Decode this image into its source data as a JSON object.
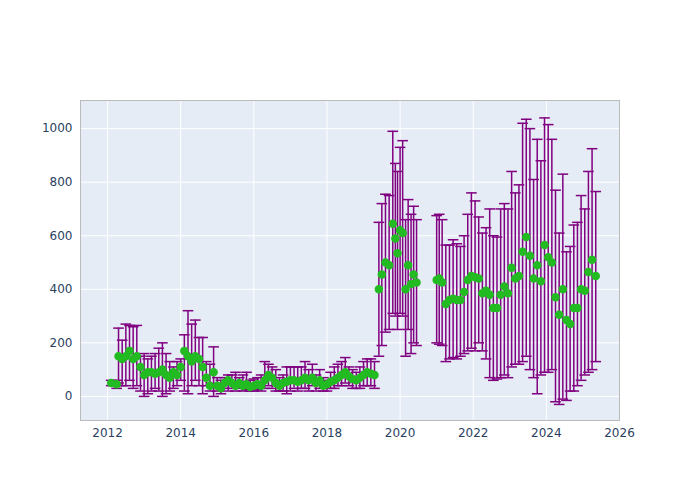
{
  "chart_data": {
    "type": "scatter",
    "marker": "circle",
    "color": "#22bb22",
    "grid": true,
    "xlim": [
      2011.26,
      2026
    ],
    "xticks": [
      2012,
      2014,
      2016,
      2018,
      2020,
      2022,
      2024,
      2026
    ],
    "ylim": [
      -90,
      1105
    ],
    "yticks": [
      0,
      200,
      400,
      600,
      800,
      1000
    ],
    "x": [
      2012.1,
      2012.25,
      2012.3,
      2012.4,
      2012.5,
      2012.6,
      2012.7,
      2012.8,
      2012.9,
      2013.0,
      2013.1,
      2013.2,
      2013.3,
      2013.4,
      2013.5,
      2013.6,
      2013.7,
      2013.8,
      2013.9,
      2014.0,
      2014.1,
      2014.2,
      2014.3,
      2014.4,
      2014.5,
      2014.6,
      2014.7,
      2014.8,
      2014.9,
      2015.0,
      2015.1,
      2015.2,
      2015.3,
      2015.4,
      2015.5,
      2015.6,
      2015.7,
      2015.8,
      2015.9,
      2016.0,
      2016.1,
      2016.2,
      2016.3,
      2016.4,
      2016.5,
      2016.6,
      2016.7,
      2016.8,
      2016.9,
      2017.0,
      2017.1,
      2017.2,
      2017.3,
      2017.4,
      2017.5,
      2017.6,
      2017.7,
      2017.8,
      2017.9,
      2018.0,
      2018.1,
      2018.2,
      2018.3,
      2018.4,
      2018.5,
      2018.6,
      2018.7,
      2018.8,
      2018.9,
      2019.0,
      2019.1,
      2019.2,
      2019.3,
      2019.42,
      2019.5,
      2019.6,
      2019.7,
      2019.8,
      2019.87,
      2019.93,
      2020.0,
      2020.07,
      2020.15,
      2020.22,
      2020.3,
      2020.37,
      2020.45,
      2021.0,
      2021.07,
      2021.15,
      2021.25,
      2021.35,
      2021.45,
      2021.55,
      2021.65,
      2021.75,
      2021.85,
      2021.95,
      2022.05,
      2022.15,
      2022.25,
      2022.35,
      2022.45,
      2022.55,
      2022.65,
      2022.75,
      2022.85,
      2022.95,
      2023.05,
      2023.15,
      2023.25,
      2023.35,
      2023.45,
      2023.55,
      2023.65,
      2023.75,
      2023.85,
      2023.95,
      2024.05,
      2024.15,
      2024.25,
      2024.35,
      2024.45,
      2024.55,
      2024.65,
      2024.75,
      2024.85,
      2024.95,
      2025.05,
      2025.15,
      2025.25,
      2025.35
    ],
    "values": [
      50,
      45,
      150,
      140,
      150,
      170,
      140,
      150,
      110,
      80,
      90,
      90,
      85,
      90,
      100,
      80,
      70,
      90,
      80,
      110,
      170,
      150,
      130,
      150,
      140,
      110,
      70,
      40,
      90,
      40,
      30,
      50,
      60,
      50,
      40,
      50,
      40,
      45,
      35,
      40,
      45,
      40,
      60,
      80,
      70,
      50,
      40,
      50,
      55,
      60,
      60,
      55,
      60,
      70,
      60,
      70,
      50,
      60,
      40,
      45,
      55,
      60,
      70,
      80,
      90,
      75,
      65,
      60,
      70,
      80,
      90,
      85,
      80,
      400,
      455,
      500,
      490,
      645,
      590,
      535,
      620,
      610,
      400,
      490,
      420,
      455,
      425,
      435,
      440,
      425,
      345,
      360,
      365,
      360,
      360,
      390,
      435,
      450,
      445,
      440,
      385,
      395,
      380,
      330,
      330,
      380,
      410,
      385,
      480,
      440,
      450,
      540,
      595,
      525,
      440,
      490,
      430,
      565,
      520,
      500,
      370,
      305,
      400,
      285,
      270,
      330,
      330,
      400,
      395,
      465,
      510,
      450
    ],
    "error_lower": [
      40,
      30,
      50,
      40,
      40,
      60,
      30,
      40,
      20,
      0,
      10,
      20,
      30,
      20,
      0,
      10,
      20,
      30,
      40,
      60,
      20,
      10,
      40,
      60,
      40,
      10,
      40,
      20,
      0,
      20,
      10,
      30,
      20,
      30,
      20,
      30,
      20,
      25,
      20,
      20,
      25,
      20,
      30,
      40,
      30,
      20,
      20,
      20,
      10,
      20,
      30,
      20,
      30,
      30,
      20,
      40,
      20,
      30,
      20,
      20,
      30,
      30,
      40,
      40,
      50,
      40,
      30,
      30,
      30,
      40,
      40,
      40,
      30,
      150,
      190,
      240,
      250,
      310,
      300,
      250,
      310,
      300,
      150,
      250,
      160,
      200,
      190,
      200,
      195,
      190,
      130,
      140,
      145,
      140,
      150,
      160,
      170,
      180,
      170,
      200,
      170,
      140,
      70,
      60,
      65,
      70,
      80,
      70,
      110,
      120,
      120,
      130,
      150,
      100,
      70,
      10,
      80,
      90,
      90,
      100,
      -20,
      -30,
      -10,
      -15,
      20,
      20,
      40,
      60,
      80,
      90,
      100,
      130
    ],
    "error_upper": [
      60,
      60,
      255,
      210,
      270,
      265,
      260,
      265,
      150,
      160,
      140,
      150,
      160,
      180,
      200,
      160,
      130,
      110,
      130,
      140,
      230,
      320,
      270,
      285,
      220,
      220,
      130,
      120,
      185,
      70,
      60,
      70,
      80,
      80,
      90,
      70,
      80,
      90,
      60,
      65,
      70,
      80,
      130,
      120,
      110,
      100,
      70,
      80,
      110,
      110,
      110,
      110,
      110,
      130,
      100,
      120,
      80,
      100,
      70,
      60,
      90,
      110,
      120,
      130,
      145,
      110,
      100,
      90,
      110,
      130,
      140,
      140,
      130,
      650,
      720,
      755,
      750,
      990,
      870,
      840,
      930,
      955,
      660,
      735,
      680,
      710,
      660,
      675,
      680,
      660,
      565,
      565,
      585,
      570,
      560,
      600,
      680,
      760,
      730,
      670,
      610,
      630,
      700,
      600,
      595,
      700,
      720,
      700,
      840,
      760,
      790,
      1020,
      1035,
      1000,
      810,
      960,
      880,
      1040,
      1015,
      960,
      770,
      610,
      830,
      540,
      560,
      640,
      650,
      750,
      700,
      840,
      925,
      765
    ]
  }
}
